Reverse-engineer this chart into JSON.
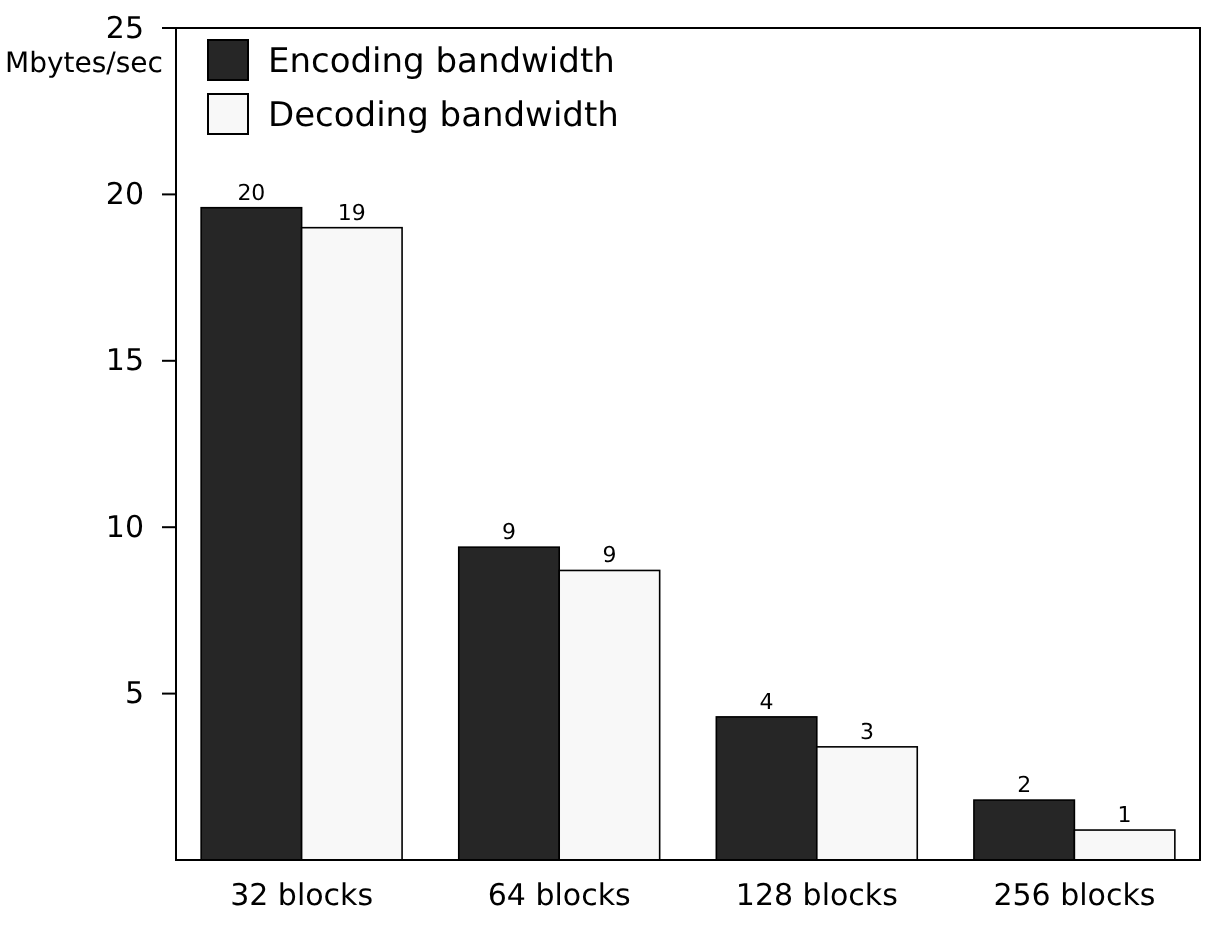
{
  "chart_data": {
    "type": "bar",
    "ylabel": "Mbytes/sec",
    "categories": [
      "32 blocks",
      "64 blocks",
      "128 blocks",
      "256 blocks"
    ],
    "series": [
      {
        "name": "Encoding bandwidth",
        "color": "#262626",
        "values": [
          19.6,
          9.4,
          4.3,
          1.8
        ],
        "value_labels": [
          "20",
          "9",
          "4",
          "2"
        ]
      },
      {
        "name": "Decoding bandwidth",
        "color": "#f8f8f8",
        "values": [
          19.0,
          8.7,
          3.4,
          0.9
        ],
        "value_labels": [
          "19",
          "9",
          "3",
          "1"
        ]
      }
    ],
    "ylim": [
      0,
      25
    ],
    "yticks": [
      5,
      10,
      15,
      20,
      25
    ],
    "grid": false,
    "legend": "top left"
  }
}
